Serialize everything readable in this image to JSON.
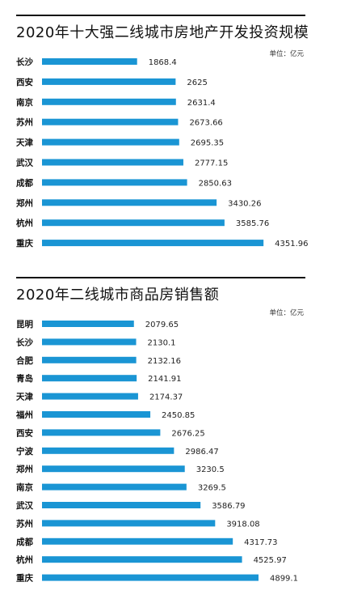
{
  "chart_data": [
    {
      "type": "bar",
      "orientation": "horizontal",
      "title": "2020年十大强二线城市房地产开发投资规模",
      "unit_label": "单位：亿元",
      "categories": [
        "长沙",
        "西安",
        "南京",
        "苏州",
        "天津",
        "武汉",
        "成都",
        "郑州",
        "杭州",
        "重庆"
      ],
      "values": [
        1868.4,
        2625,
        2631.4,
        2673.66,
        2695.35,
        2777.15,
        2850.63,
        3430.26,
        3585.76,
        4351.96
      ],
      "value_labels": [
        "1868.4",
        "2625",
        "2631.4",
        "2673.66",
        "2695.35",
        "2777.15",
        "2850.63",
        "3430.26",
        "3585.76",
        "4351.96"
      ],
      "bar_color": "#1a95d4",
      "grid": false,
      "legend": "none"
    },
    {
      "type": "bar",
      "orientation": "horizontal",
      "title": "2020年二线城市商品房销售额",
      "unit_label": "单位：亿元",
      "categories": [
        "昆明",
        "长沙",
        "合肥",
        "青岛",
        "天津",
        "福州",
        "西安",
        "宁波",
        "郑州",
        "南京",
        "武汉",
        "苏州",
        "成都",
        "杭州",
        "重庆"
      ],
      "values": [
        2079.65,
        2130.1,
        2132.16,
        2141.91,
        2174.37,
        2450.85,
        2676.25,
        2986.47,
        3230.5,
        3269.5,
        3586.79,
        3918.08,
        4317.73,
        4525.97,
        4899.1
      ],
      "value_labels": [
        "2079.65",
        "2130.1",
        "2132.16",
        "2141.91",
        "2174.37",
        "2450.85",
        "2676.25",
        "2986.47",
        "3230.5",
        "3269.5",
        "3586.79",
        "3918.08",
        "4317.73",
        "4525.97",
        "4899.1"
      ],
      "bar_color": "#1a95d4",
      "grid": false,
      "legend": "none"
    }
  ]
}
